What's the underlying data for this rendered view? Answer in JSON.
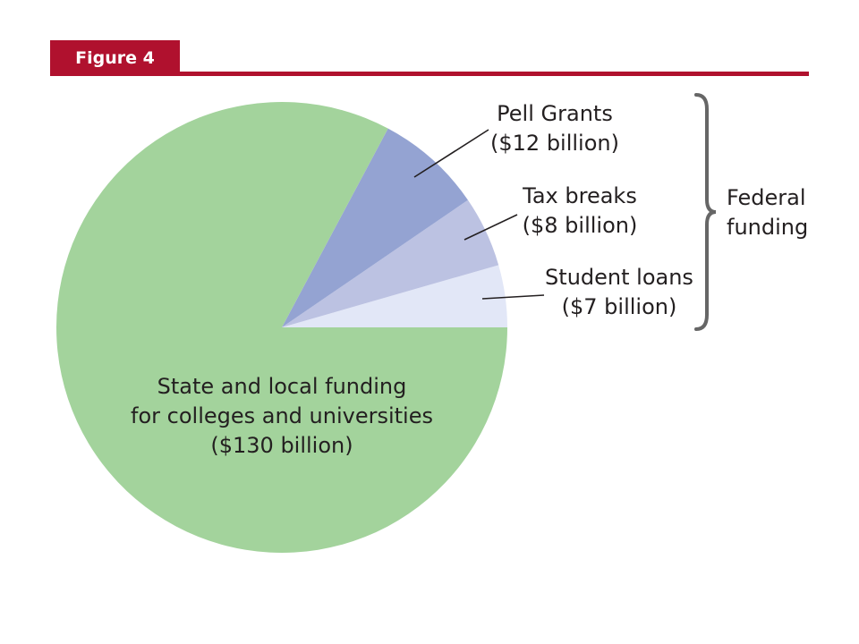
{
  "figure_label": "Figure 4",
  "colors": {
    "accent": "#b0112e",
    "state_local": "#a3d39c",
    "pell": "#94a3d2",
    "tax": "#bcc2e2",
    "loans": "#e2e7f7",
    "text": "#231f20",
    "bracket": "#666666"
  },
  "chart_data": {
    "type": "pie",
    "title": "",
    "slices": [
      {
        "key": "state_local",
        "label_lines": [
          "State and local funding",
          "for colleges and universities",
          "($130 billion)"
        ],
        "value": 130,
        "color": "#a3d39c"
      },
      {
        "key": "pell",
        "label_lines": [
          "Pell Grants",
          "($12 billion)"
        ],
        "value": 12,
        "color": "#94a3d2"
      },
      {
        "key": "tax",
        "label_lines": [
          "Tax breaks",
          "($8 billion)"
        ],
        "value": 8,
        "color": "#bcc2e2"
      },
      {
        "key": "loans",
        "label_lines": [
          "Student loans",
          "($7 billion)"
        ],
        "value": 7,
        "color": "#e2e7f7"
      }
    ],
    "group_label_lines": [
      "Federal",
      "funding"
    ],
    "group_members": [
      "pell",
      "tax",
      "loans"
    ]
  }
}
